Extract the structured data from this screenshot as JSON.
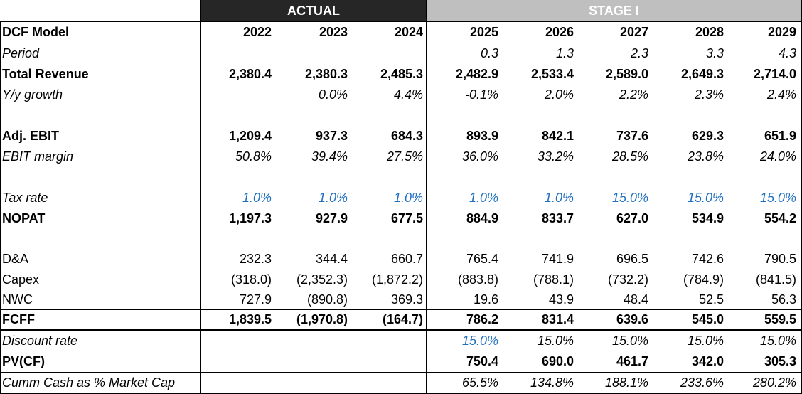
{
  "headers": {
    "actual": "ACTUAL",
    "stage": "STAGE I"
  },
  "columns": [
    "2022",
    "2023",
    "2024",
    "2025",
    "2026",
    "2027",
    "2028",
    "2029"
  ],
  "title": "DCF Model",
  "colors": {
    "actual_band": "#262626",
    "stage_band": "#bfbfbf",
    "input_blue": "#1f6fc1"
  },
  "rows": [
    {
      "label": "Period",
      "style": "italic",
      "values": [
        "",
        "",
        "",
        "0.3",
        "1.3",
        "2.3",
        "3.3",
        "4.3"
      ]
    },
    {
      "label": "Total Revenue",
      "style": "bold",
      "values": [
        "2,380.4",
        "2,380.3",
        "2,485.3",
        "2,482.9",
        "2,533.4",
        "2,589.0",
        "2,649.3",
        "2,714.0"
      ]
    },
    {
      "label": "Y/y growth",
      "style": "italic",
      "values": [
        "",
        "0.0%",
        "4.4%",
        "-0.1%",
        "2.0%",
        "2.2%",
        "2.3%",
        "2.4%"
      ]
    },
    {
      "label": "",
      "style": "normal",
      "values": [
        "",
        "",
        "",
        "",
        "",
        "",
        "",
        ""
      ]
    },
    {
      "label": "Adj. EBIT",
      "style": "bold",
      "values": [
        "1,209.4",
        "937.3",
        "684.3",
        "893.9",
        "842.1",
        "737.6",
        "629.3",
        "651.9"
      ]
    },
    {
      "label": "EBIT margin",
      "style": "italic",
      "values": [
        "50.8%",
        "39.4%",
        "27.5%",
        "36.0%",
        "33.2%",
        "28.5%",
        "23.8%",
        "24.0%"
      ]
    },
    {
      "label": "",
      "style": "normal",
      "values": [
        "",
        "",
        "",
        "",
        "",
        "",
        "",
        ""
      ]
    },
    {
      "label": "Tax rate",
      "style": "italic",
      "blue": true,
      "values": [
        "1.0%",
        "1.0%",
        "1.0%",
        "1.0%",
        "1.0%",
        "15.0%",
        "15.0%",
        "15.0%"
      ]
    },
    {
      "label": "NOPAT",
      "style": "bold",
      "values": [
        "1,197.3",
        "927.9",
        "677.5",
        "884.9",
        "833.7",
        "627.0",
        "534.9",
        "554.2"
      ]
    },
    {
      "label": "",
      "style": "normal",
      "values": [
        "",
        "",
        "",
        "",
        "",
        "",
        "",
        ""
      ]
    },
    {
      "label": "D&A",
      "style": "normal",
      "values": [
        "232.3",
        "344.4",
        "660.7",
        "765.4",
        "741.9",
        "696.5",
        "742.6",
        "790.5"
      ]
    },
    {
      "label": "Capex",
      "style": "normal",
      "values": [
        "(318.0)",
        "(2,352.3)",
        "(1,872.2)",
        "(883.8)",
        "(788.1)",
        "(732.2)",
        "(784.9)",
        "(841.5)"
      ]
    },
    {
      "label": "NWC",
      "style": "normal",
      "values": [
        "727.9",
        "(890.8)",
        "369.3",
        "19.6",
        "43.9",
        "48.4",
        "52.5",
        "56.3"
      ]
    },
    {
      "label": "FCFF",
      "style": "bold",
      "values": [
        "1,839.5",
        "(1,970.8)",
        "(164.7)",
        "786.2",
        "831.4",
        "639.6",
        "545.0",
        "559.5"
      ]
    },
    {
      "label": "Discount rate",
      "style": "italic",
      "values": [
        "",
        "",
        "",
        "15.0%",
        "15.0%",
        "15.0%",
        "15.0%",
        "15.0%"
      ],
      "blue_cols": [
        3
      ]
    },
    {
      "label": "PV(CF)",
      "style": "bold",
      "values": [
        "",
        "",
        "",
        "750.4",
        "690.0",
        "461.7",
        "342.0",
        "305.3"
      ]
    },
    {
      "label": "Cumm Cash as % Market Cap",
      "style": "italic",
      "values": [
        "",
        "",
        "",
        "65.5%",
        "134.8%",
        "188.1%",
        "233.6%",
        "280.2%"
      ]
    }
  ]
}
